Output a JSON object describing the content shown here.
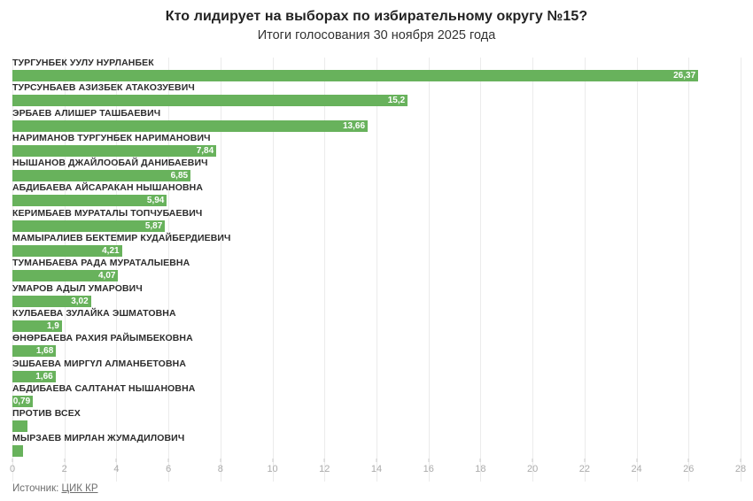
{
  "header": {
    "title": "Кто лидирует на выборах по избирательному округу №15?",
    "subtitle": "Итоги голосования 30 ноября 2025 года"
  },
  "footer": {
    "source_prefix": "Источник: ",
    "source_link": "ЦИК КР"
  },
  "colors": {
    "bar": "#68b25c",
    "bar_value_text": "#ffffff",
    "category_label": "#2d2d2d",
    "axis_label": "#ababab",
    "gridline": "#ebebeb",
    "title": "#222222"
  },
  "chart_data": {
    "type": "bar",
    "orientation": "horizontal",
    "title": "Кто лидирует на выборах по избирательному округу №15?",
    "subtitle": "Итоги голосования 30 ноября 2025 года",
    "xlabel": "",
    "ylabel": "",
    "xlim": [
      0,
      28
    ],
    "x_ticks": [
      0,
      2,
      4,
      6,
      8,
      10,
      12,
      14,
      16,
      18,
      20,
      22,
      24,
      26,
      28
    ],
    "grid": true,
    "legend": false,
    "categories": [
      "ТУРГУНБЕК УУЛУ НУРЛАНБЕК",
      "ТУРСУНБАЕВ АЗИЗБЕК АТАКОЗУЕВИЧ",
      "ЭРБАЕВ АЛИШЕР ТАШБАЕВИЧ",
      "НАРИМАНОВ ТУРГУНБЕК НАРИМАНОВИЧ",
      "НЫШАНОВ ДЖАЙЛООБАЙ ДАНИБАЕВИЧ",
      "АБДИБАЕВА АЙСАРАКАН НЫШАНОВНА",
      "КЕРИМБАЕВ МУРАТАЛЫ ТОПЧУБАЕВИЧ",
      "МАМЫРАЛИЕВ БЕКТЕМИР КУДАЙБЕРДИЕВИЧ",
      "ТУМАНБАЕВА РАДА МУРАТАЛЫЕВНА",
      "УМАРОВ АДЫЛ УМАРОВИЧ",
      "КУЛБАЕВА ЗУЛАЙКА ЭШМАТОВНА",
      "ӨНӨРБАЕВА РАХИЯ РАЙЫМБЕКОВНА",
      "ЭШБАЕВА МИРГҮЛ АЛМАНБЕТОВНА",
      "АБДИБАЕВА САЛТАНАТ НЫШАНОВНА",
      "ПРОТИВ ВСЕХ",
      "МЫРЗАЕВ МИРЛАН ЖУМАДИЛОВИЧ"
    ],
    "values": [
      26.37,
      15.2,
      13.66,
      7.84,
      6.85,
      5.94,
      5.87,
      4.21,
      4.07,
      3.02,
      1.9,
      1.68,
      1.66,
      0.79,
      0.57,
      0.42
    ],
    "value_labels": [
      "26,37",
      "15,2",
      "13,66",
      "7,84",
      "6,85",
      "5,94",
      "5,87",
      "4,21",
      "4,07",
      "3,02",
      "1,9",
      "1,68",
      "1,66",
      "0,79",
      "",
      ""
    ]
  }
}
